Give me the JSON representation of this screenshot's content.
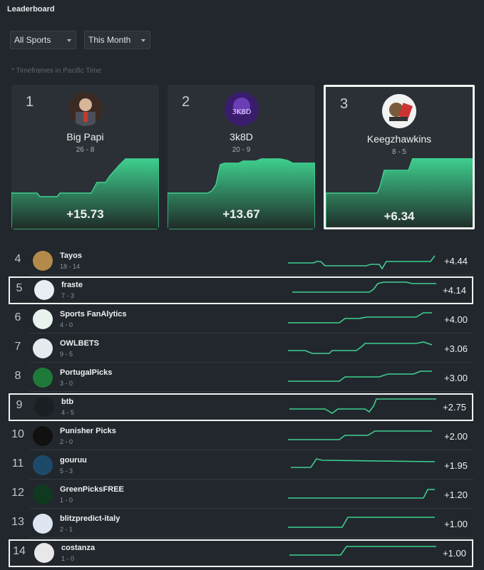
{
  "header": {
    "title": "Leaderboard"
  },
  "filters": {
    "sport": "All Sports",
    "period": "This Month",
    "note": "* Timeframes in Pacific Time"
  },
  "colors": {
    "accent": "#3ecf8e",
    "highlight": "#f2f2f2"
  },
  "top": [
    {
      "rank": "1",
      "name": "Big Papi",
      "record": "26 - 8",
      "value": "+15.73",
      "highlighted": false
    },
    {
      "rank": "2",
      "name": "3k8D",
      "record": "20 - 9",
      "value": "+13.67",
      "highlighted": false
    },
    {
      "rank": "3",
      "name": "Keegzhawkins",
      "record": "8 - 5",
      "value": "+6.34",
      "highlighted": true
    }
  ],
  "rows": [
    {
      "rank": "4",
      "name": "Tayos",
      "record": "18 - 14",
      "value": "+4.44",
      "highlighted": false
    },
    {
      "rank": "5",
      "name": "fraste",
      "record": "7 - 3",
      "value": "+4.14",
      "highlighted": true
    },
    {
      "rank": "6",
      "name": "Sports FanAlytics",
      "record": "4 - 0",
      "value": "+4.00",
      "highlighted": false
    },
    {
      "rank": "7",
      "name": "OWLBETS",
      "record": "9 - 5",
      "value": "+3.06",
      "highlighted": false
    },
    {
      "rank": "8",
      "name": "PortugalPicks",
      "record": "3 - 0",
      "value": "+3.00",
      "highlighted": false
    },
    {
      "rank": "9",
      "name": "btb",
      "record": "4 - 5",
      "value": "+2.75",
      "highlighted": true
    },
    {
      "rank": "10",
      "name": "Punisher Picks",
      "record": "2 - 0",
      "value": "+2.00",
      "highlighted": false
    },
    {
      "rank": "11",
      "name": "gouruu",
      "record": "5 - 3",
      "value": "+1.95",
      "highlighted": false
    },
    {
      "rank": "12",
      "name": "GreenPicksFREE",
      "record": "1 - 0",
      "value": "+1.20",
      "highlighted": false
    },
    {
      "rank": "13",
      "name": "blitzpredict-italy",
      "record": "2 - 1",
      "value": "+1.00",
      "highlighted": false
    },
    {
      "rank": "14",
      "name": "costanza",
      "record": "1 - 0",
      "value": "+1.00",
      "highlighted": true
    }
  ]
}
